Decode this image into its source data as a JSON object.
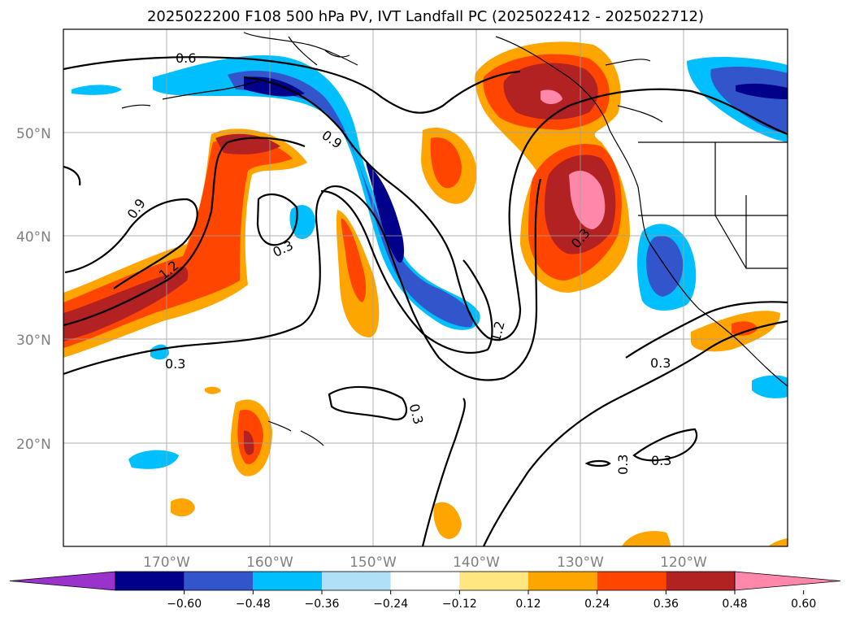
{
  "title": "2025022200 F108 500 hPa PV, IVT Landfall PC (2025022412 - 2025022712)",
  "lat_labels": [
    "50°N",
    "40°N",
    "30°N",
    "20°N"
  ],
  "lon_labels": [
    "170°W",
    "160°W",
    "150°W",
    "140°W",
    "130°W",
    "120°W"
  ],
  "contour_labels": [
    "0.6",
    "0.9",
    "0.9",
    "1.2",
    "0.3",
    "0.3",
    "1.2",
    "0.3",
    "0.3",
    "0.3",
    "0.3",
    "0.3",
    "0.3"
  ],
  "colorbar": {
    "tick_labels": [
      "−0.60",
      "−0.48",
      "−0.36",
      "−0.24",
      "−0.12",
      "0.12",
      "0.24",
      "0.36",
      "0.48",
      "0.60"
    ],
    "colors": [
      "#9933cc",
      "#00008b",
      "#3355cc",
      "#00bfff",
      "#b0e0f8",
      "#ffffff",
      "#ffe680",
      "#ffa500",
      "#ff4500",
      "#b22222",
      "#ff88aa"
    ]
  },
  "colors": {
    "neg_strong": "#00008b",
    "neg_mid": "#3355cc",
    "neg_light": "#00bfff",
    "pos_light": "#ffe680",
    "pos_mid": "#ffa500",
    "pos_strong": "#ff4500",
    "pos_dark": "#b22222",
    "pos_max": "#ff88aa"
  }
}
